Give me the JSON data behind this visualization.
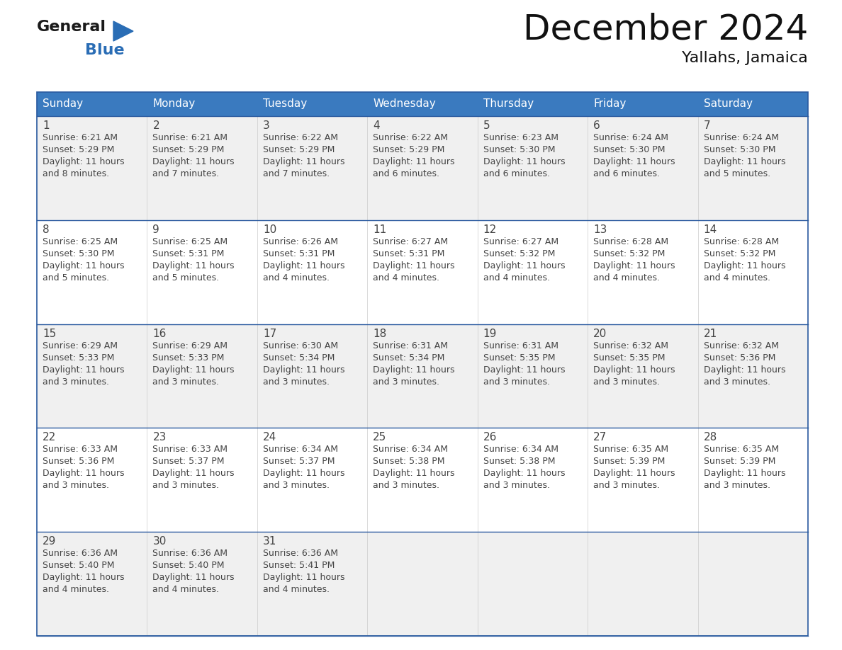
{
  "title": "December 2024",
  "subtitle": "Yallahs, Jamaica",
  "header_color": "#3a7abf",
  "header_text_color": "#ffffff",
  "cell_bg_color_odd": "#f0f0f0",
  "cell_bg_color_even": "#ffffff",
  "border_color": "#2a5a9f",
  "text_color": "#444444",
  "days_of_week": [
    "Sunday",
    "Monday",
    "Tuesday",
    "Wednesday",
    "Thursday",
    "Friday",
    "Saturday"
  ],
  "weeks": [
    [
      {
        "day": 1,
        "sunrise": "6:21 AM",
        "sunset": "5:29 PM",
        "daylight_hours": 11,
        "daylight_min": 8
      },
      {
        "day": 2,
        "sunrise": "6:21 AM",
        "sunset": "5:29 PM",
        "daylight_hours": 11,
        "daylight_min": 7
      },
      {
        "day": 3,
        "sunrise": "6:22 AM",
        "sunset": "5:29 PM",
        "daylight_hours": 11,
        "daylight_min": 7
      },
      {
        "day": 4,
        "sunrise": "6:22 AM",
        "sunset": "5:29 PM",
        "daylight_hours": 11,
        "daylight_min": 6
      },
      {
        "day": 5,
        "sunrise": "6:23 AM",
        "sunset": "5:30 PM",
        "daylight_hours": 11,
        "daylight_min": 6
      },
      {
        "day": 6,
        "sunrise": "6:24 AM",
        "sunset": "5:30 PM",
        "daylight_hours": 11,
        "daylight_min": 6
      },
      {
        "day": 7,
        "sunrise": "6:24 AM",
        "sunset": "5:30 PM",
        "daylight_hours": 11,
        "daylight_min": 5
      }
    ],
    [
      {
        "day": 8,
        "sunrise": "6:25 AM",
        "sunset": "5:30 PM",
        "daylight_hours": 11,
        "daylight_min": 5
      },
      {
        "day": 9,
        "sunrise": "6:25 AM",
        "sunset": "5:31 PM",
        "daylight_hours": 11,
        "daylight_min": 5
      },
      {
        "day": 10,
        "sunrise": "6:26 AM",
        "sunset": "5:31 PM",
        "daylight_hours": 11,
        "daylight_min": 4
      },
      {
        "day": 11,
        "sunrise": "6:27 AM",
        "sunset": "5:31 PM",
        "daylight_hours": 11,
        "daylight_min": 4
      },
      {
        "day": 12,
        "sunrise": "6:27 AM",
        "sunset": "5:32 PM",
        "daylight_hours": 11,
        "daylight_min": 4
      },
      {
        "day": 13,
        "sunrise": "6:28 AM",
        "sunset": "5:32 PM",
        "daylight_hours": 11,
        "daylight_min": 4
      },
      {
        "day": 14,
        "sunrise": "6:28 AM",
        "sunset": "5:32 PM",
        "daylight_hours": 11,
        "daylight_min": 4
      }
    ],
    [
      {
        "day": 15,
        "sunrise": "6:29 AM",
        "sunset": "5:33 PM",
        "daylight_hours": 11,
        "daylight_min": 3
      },
      {
        "day": 16,
        "sunrise": "6:29 AM",
        "sunset": "5:33 PM",
        "daylight_hours": 11,
        "daylight_min": 3
      },
      {
        "day": 17,
        "sunrise": "6:30 AM",
        "sunset": "5:34 PM",
        "daylight_hours": 11,
        "daylight_min": 3
      },
      {
        "day": 18,
        "sunrise": "6:31 AM",
        "sunset": "5:34 PM",
        "daylight_hours": 11,
        "daylight_min": 3
      },
      {
        "day": 19,
        "sunrise": "6:31 AM",
        "sunset": "5:35 PM",
        "daylight_hours": 11,
        "daylight_min": 3
      },
      {
        "day": 20,
        "sunrise": "6:32 AM",
        "sunset": "5:35 PM",
        "daylight_hours": 11,
        "daylight_min": 3
      },
      {
        "day": 21,
        "sunrise": "6:32 AM",
        "sunset": "5:36 PM",
        "daylight_hours": 11,
        "daylight_min": 3
      }
    ],
    [
      {
        "day": 22,
        "sunrise": "6:33 AM",
        "sunset": "5:36 PM",
        "daylight_hours": 11,
        "daylight_min": 3
      },
      {
        "day": 23,
        "sunrise": "6:33 AM",
        "sunset": "5:37 PM",
        "daylight_hours": 11,
        "daylight_min": 3
      },
      {
        "day": 24,
        "sunrise": "6:34 AM",
        "sunset": "5:37 PM",
        "daylight_hours": 11,
        "daylight_min": 3
      },
      {
        "day": 25,
        "sunrise": "6:34 AM",
        "sunset": "5:38 PM",
        "daylight_hours": 11,
        "daylight_min": 3
      },
      {
        "day": 26,
        "sunrise": "6:34 AM",
        "sunset": "5:38 PM",
        "daylight_hours": 11,
        "daylight_min": 3
      },
      {
        "day": 27,
        "sunrise": "6:35 AM",
        "sunset": "5:39 PM",
        "daylight_hours": 11,
        "daylight_min": 3
      },
      {
        "day": 28,
        "sunrise": "6:35 AM",
        "sunset": "5:39 PM",
        "daylight_hours": 11,
        "daylight_min": 3
      }
    ],
    [
      {
        "day": 29,
        "sunrise": "6:36 AM",
        "sunset": "5:40 PM",
        "daylight_hours": 11,
        "daylight_min": 4
      },
      {
        "day": 30,
        "sunrise": "6:36 AM",
        "sunset": "5:40 PM",
        "daylight_hours": 11,
        "daylight_min": 4
      },
      {
        "day": 31,
        "sunrise": "6:36 AM",
        "sunset": "5:41 PM",
        "daylight_hours": 11,
        "daylight_min": 4
      },
      null,
      null,
      null,
      null
    ]
  ],
  "logo_text_general": "General",
  "logo_text_blue": "Blue",
  "fig_width": 11.88,
  "fig_height": 9.18
}
